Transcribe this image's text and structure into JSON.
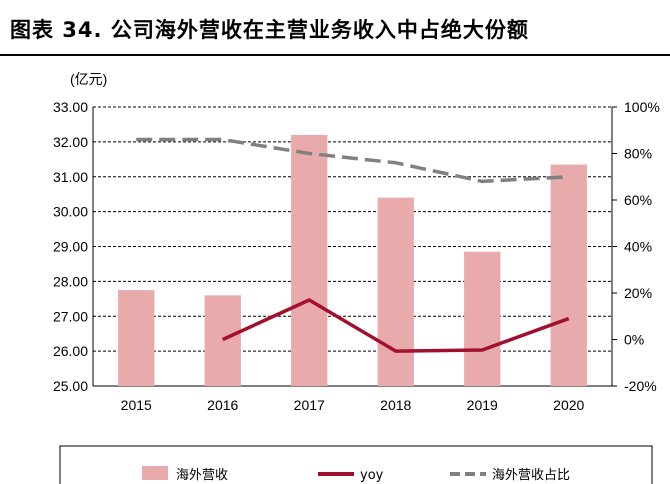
{
  "title": "图表 34. 公司海外营收在主营业务收入中占绝大份额",
  "chart_data": {
    "type": "bar",
    "unit_label": "(亿元)",
    "categories": [
      "2015",
      "2016",
      "2017",
      "2018",
      "2019",
      "2020"
    ],
    "series": [
      {
        "name": "海外营收",
        "type": "bar",
        "axis": "left",
        "color": "#e8aaaa",
        "values": [
          27.75,
          27.6,
          32.2,
          30.4,
          28.85,
          31.35
        ]
      },
      {
        "name": "yoy",
        "type": "line",
        "axis": "right",
        "color": "#a3102e",
        "values": [
          null,
          0.0,
          0.17,
          -0.05,
          -0.045,
          0.09
        ]
      },
      {
        "name": "海外营收占比",
        "type": "line",
        "dashed": true,
        "axis": "right",
        "color": "#808080",
        "values": [
          0.86,
          0.86,
          0.8,
          0.76,
          0.68,
          0.7
        ]
      }
    ],
    "y_left": {
      "min": 25,
      "max": 33,
      "step": 1,
      "ticks": [
        "25.00",
        "26.00",
        "27.00",
        "28.00",
        "29.00",
        "30.00",
        "31.00",
        "32.00",
        "33.00"
      ]
    },
    "y_right": {
      "min": -0.2,
      "max": 1.0,
      "step": 0.2,
      "ticks": [
        "-20%",
        "0%",
        "20%",
        "40%",
        "60%",
        "80%",
        "100%"
      ]
    },
    "grid": "dashed horizontal",
    "legend": "bottom"
  }
}
